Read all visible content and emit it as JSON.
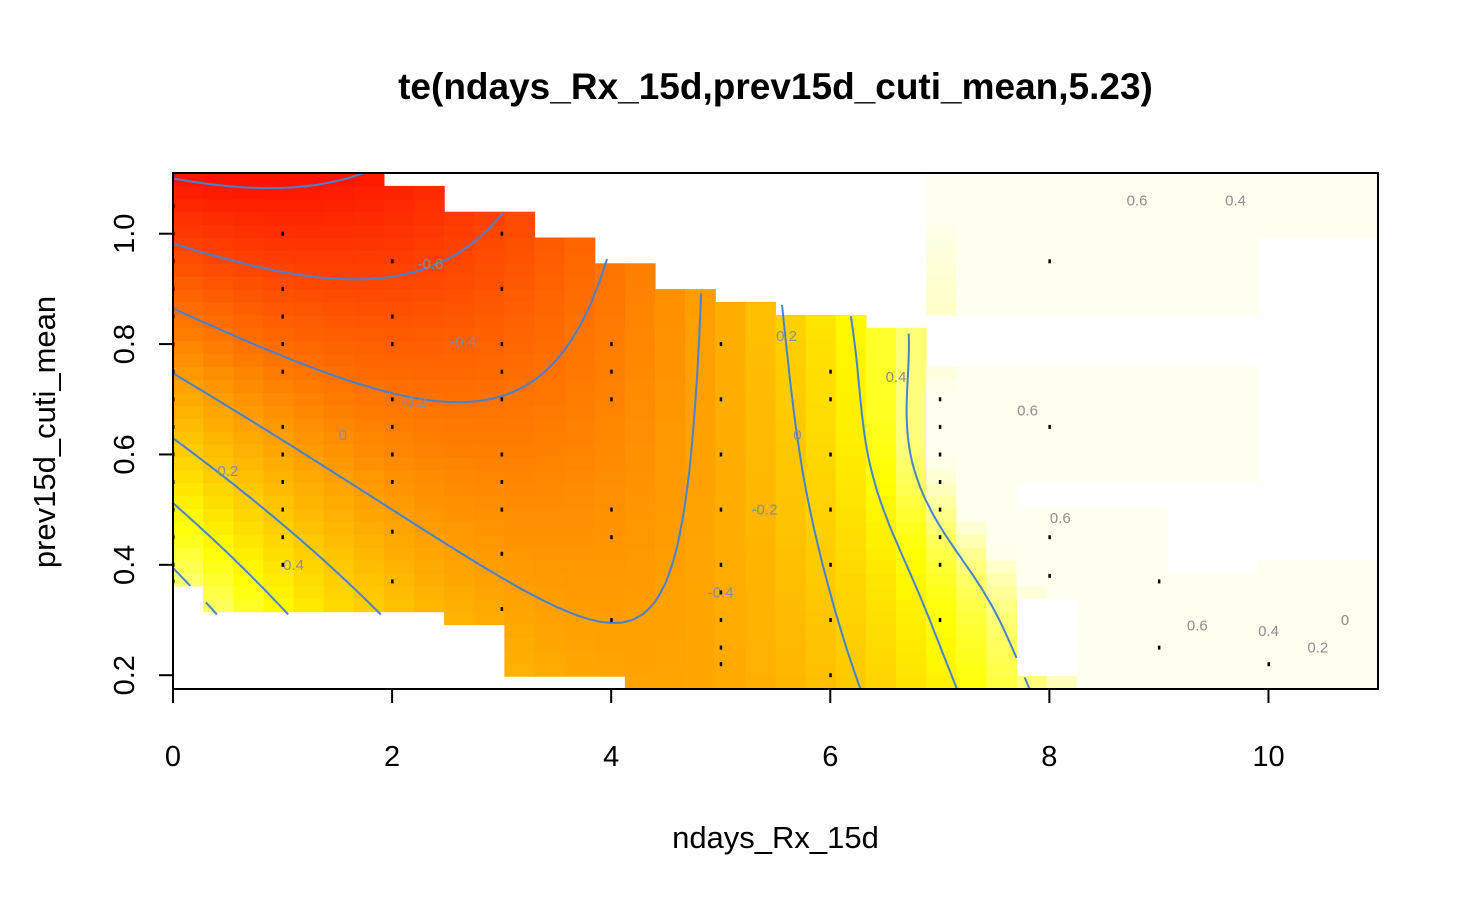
{
  "chart_data": {
    "type": "heatmap",
    "title": "te(ndays_Rx_15d,prev15d_cuti_mean,5.23)",
    "xlabel": "ndays_Rx_15d",
    "ylabel": "prev15d_cuti_mean",
    "xlim": [
      0,
      11
    ],
    "ylim": [
      0.175,
      1.11
    ],
    "x_ticks": [
      0,
      2,
      4,
      6,
      8,
      10
    ],
    "y_ticks": [
      0.2,
      0.4,
      0.6,
      0.8,
      1.0
    ],
    "x_tick_labels": [
      "0",
      "2",
      "4",
      "6",
      "8",
      "10"
    ],
    "y_tick_labels": [
      "0.2",
      "0.4",
      "0.6",
      "0.8",
      "1.0"
    ],
    "color_scale": {
      "low": "#ff0000",
      "mid": "#ff9a00",
      "high": "#ffff00",
      "highest": "#fffff0"
    },
    "surface_range": [
      -0.7,
      0.8
    ],
    "contour_color": "#4682d2",
    "contour_label_color": "#8c8c8c",
    "contour_levels": [
      "-0.6",
      "-0.4",
      "-0.2",
      "0",
      "0.2",
      "0.4",
      "0.6"
    ],
    "contour_labels": [
      {
        "text": "-0.6",
        "x": 2.35,
        "y": 0.945
      },
      {
        "text": "-0.4",
        "x": 2.65,
        "y": 0.805
      },
      {
        "text": "-0.2",
        "x": 2.2,
        "y": 0.695
      },
      {
        "text": "0",
        "x": 1.55,
        "y": 0.635
      },
      {
        "text": "0.2",
        "x": 0.5,
        "y": 0.57
      },
      {
        "text": "0.4",
        "x": 1.1,
        "y": 0.4
      },
      {
        "text": "-0.4",
        "x": 5.0,
        "y": 0.35
      },
      {
        "text": "-0.2",
        "x": 5.4,
        "y": 0.5
      },
      {
        "text": "0",
        "x": 5.7,
        "y": 0.635
      },
      {
        "text": "0.2",
        "x": 5.6,
        "y": 0.815
      },
      {
        "text": "0.4",
        "x": 6.6,
        "y": 0.74
      },
      {
        "text": "0.6",
        "x": 7.8,
        "y": 0.68
      },
      {
        "text": "0.6",
        "x": 8.1,
        "y": 0.485
      },
      {
        "text": "0.6",
        "x": 9.35,
        "y": 0.29
      },
      {
        "text": "0.4",
        "x": 10.0,
        "y": 0.28
      },
      {
        "text": "0.2",
        "x": 10.45,
        "y": 0.25
      },
      {
        "text": "0",
        "x": 10.7,
        "y": 0.3
      },
      {
        "text": "0.6",
        "x": 8.8,
        "y": 1.06
      },
      {
        "text": "0.4",
        "x": 9.7,
        "y": 1.06
      }
    ]
  }
}
